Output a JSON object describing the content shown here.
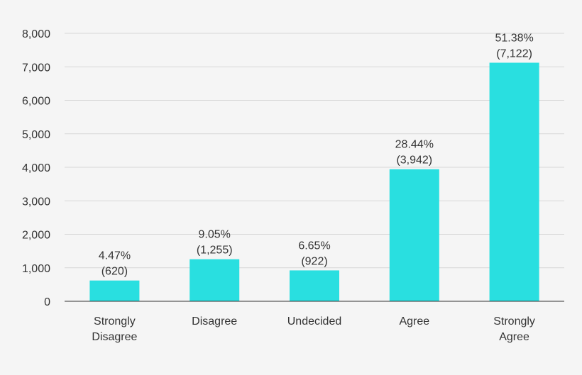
{
  "chart_data": {
    "type": "bar",
    "categories": [
      [
        "Strongly",
        "Disagree"
      ],
      [
        "Disagree"
      ],
      [
        "Undecided"
      ],
      [
        "Agree"
      ],
      [
        "Strongly",
        "Agree"
      ]
    ],
    "values": [
      620,
      1255,
      922,
      3942,
      7122
    ],
    "data_labels": [
      [
        "4.47%",
        "(620)"
      ],
      [
        "9.05%",
        "(1,255)"
      ],
      [
        "6.65%",
        "(922)"
      ],
      [
        "28.44%",
        "(3,942)"
      ],
      [
        "51.38%",
        "(7,122)"
      ]
    ],
    "yticks": [
      0,
      1000,
      2000,
      3000,
      4000,
      5000,
      6000,
      7000,
      8000
    ],
    "ytick_labels": [
      "0",
      "1,000",
      "2,000",
      "3,000",
      "4,000",
      "5,000",
      "6,000",
      "7,000",
      "8,000"
    ],
    "ylim": [
      0,
      8000
    ],
    "title": "",
    "xlabel": "",
    "ylabel": "",
    "grid": true,
    "legend": "none",
    "colors": {
      "bar": "#29dfe0",
      "grid": "#d7d7d7",
      "text": "#333333",
      "background": "#f5f5f5"
    }
  }
}
